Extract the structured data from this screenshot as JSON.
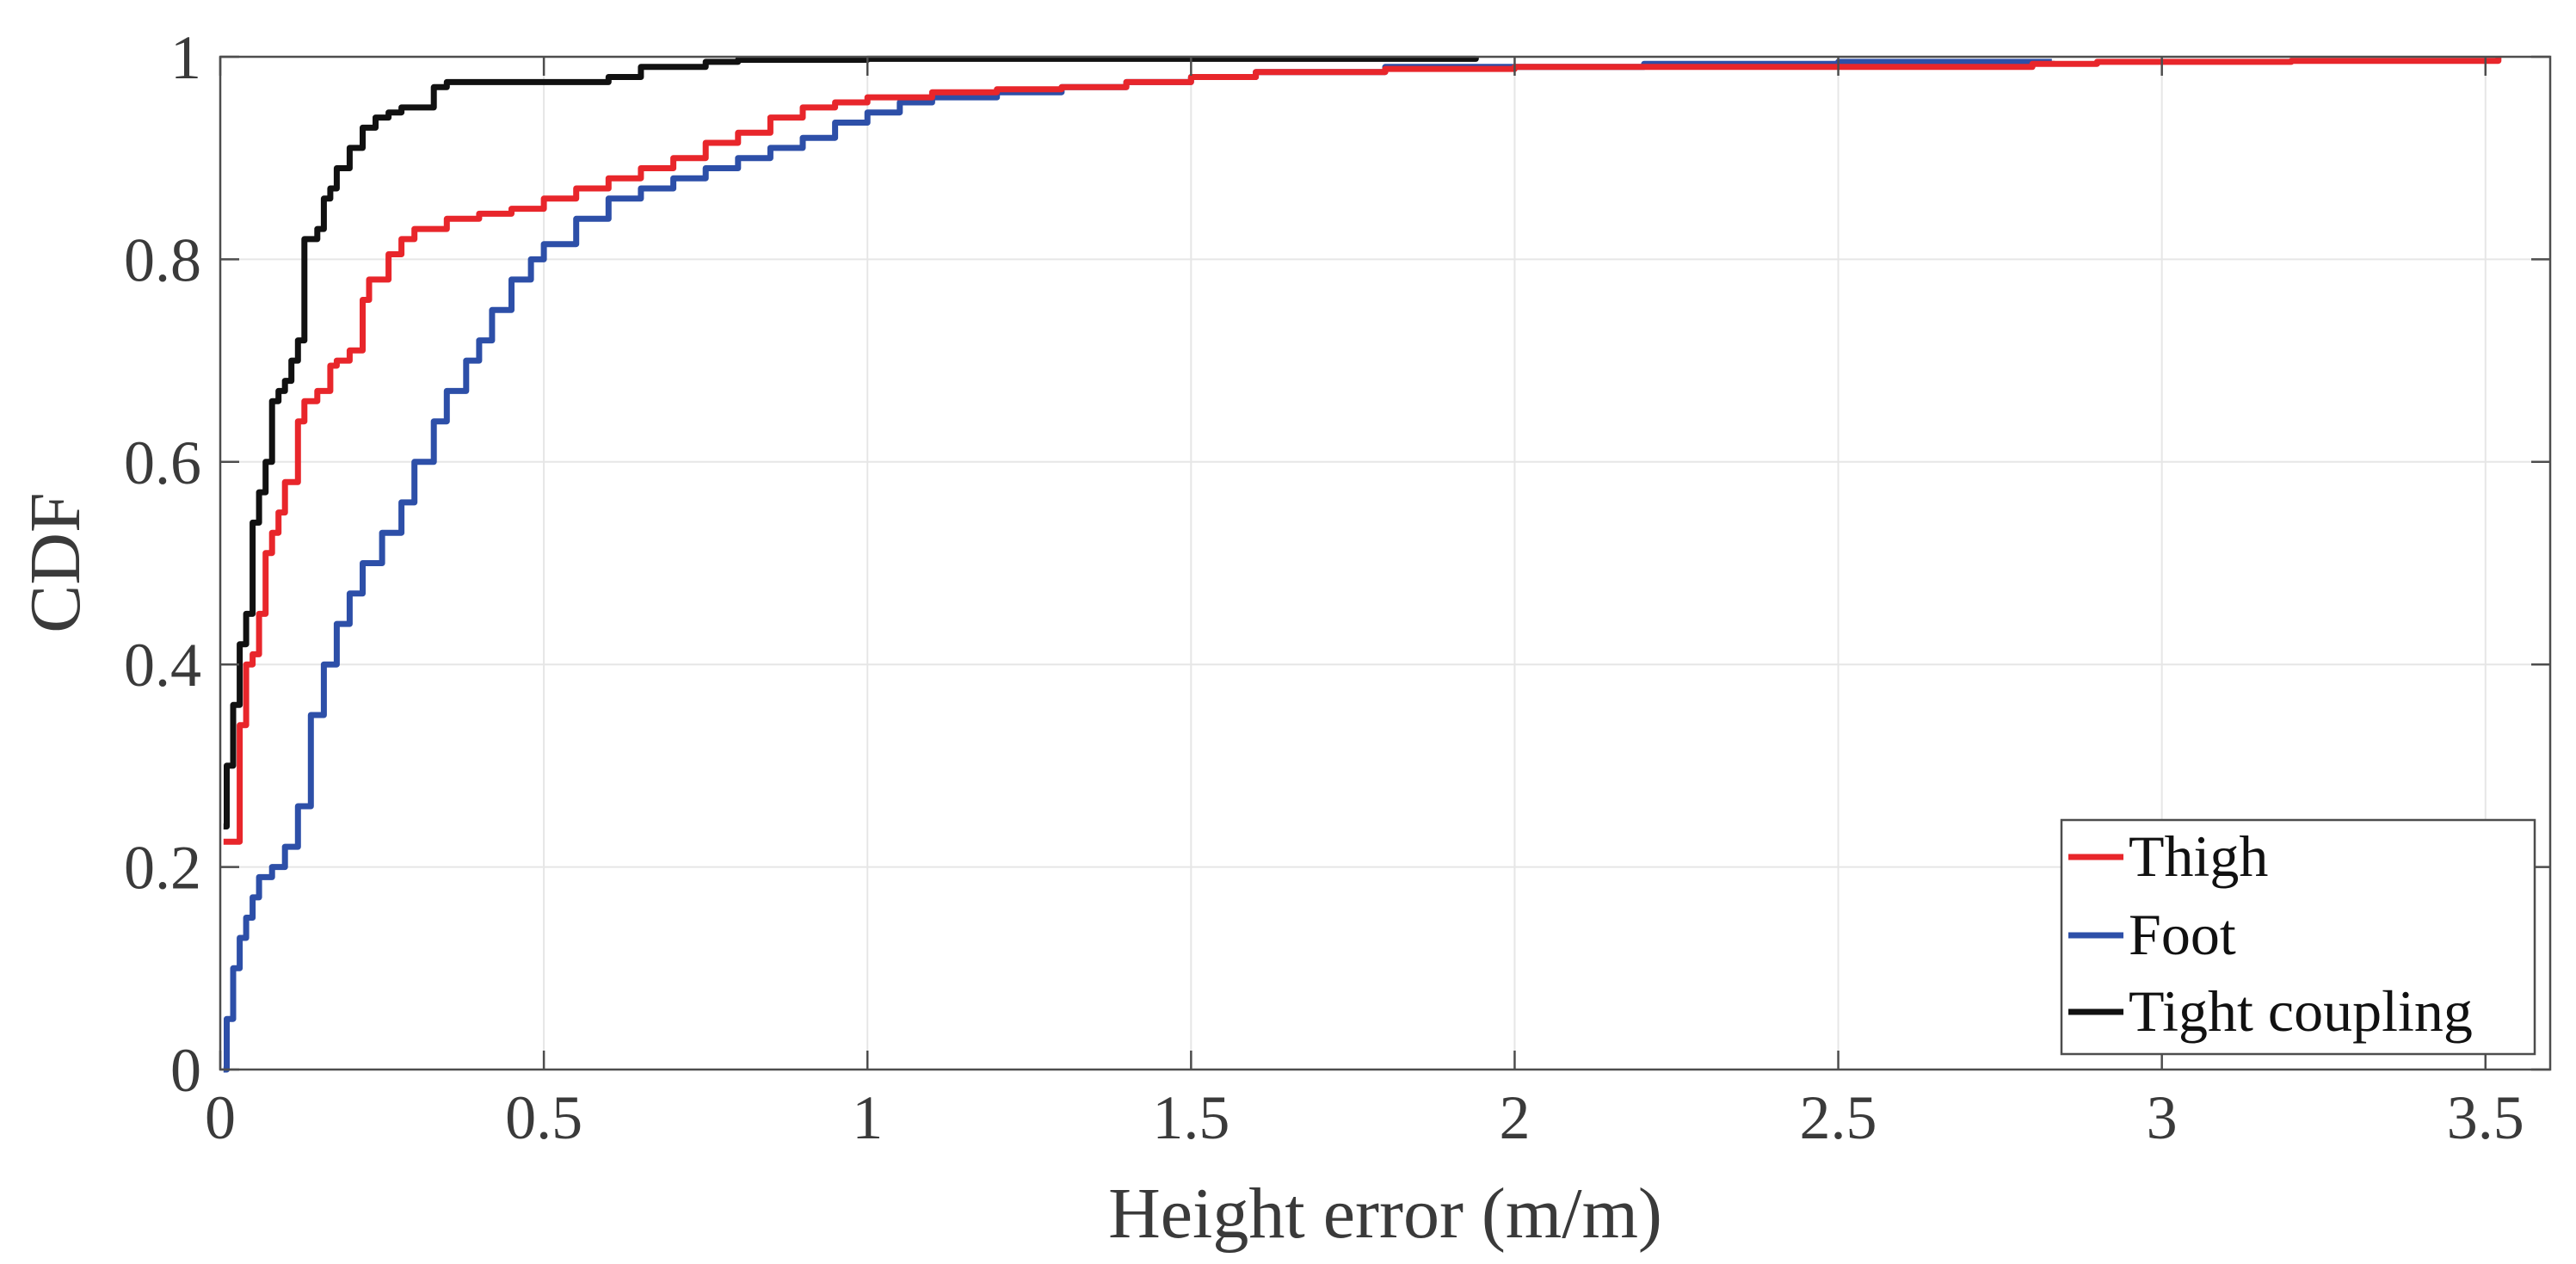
{
  "chart_data": {
    "type": "line",
    "title": "",
    "xlabel": "Height error (m/m)",
    "ylabel": "CDF",
    "xlim": [
      0,
      3.6
    ],
    "ylim": [
      0,
      1
    ],
    "x_ticks": [
      0,
      0.5,
      1,
      1.5,
      2,
      2.5,
      3,
      3.5
    ],
    "x_tick_labels": [
      "0",
      "0.5",
      "1",
      "1.5",
      "2",
      "2.5",
      "3",
      "3.5"
    ],
    "y_ticks": [
      0,
      0.2,
      0.4,
      0.6,
      0.8,
      1
    ],
    "y_tick_labels": [
      "0",
      "0.2",
      "0.4",
      "0.6",
      "0.8",
      "1"
    ],
    "grid": true,
    "legend_position": "bottom-right",
    "series": [
      {
        "name": "Thigh",
        "color": "#e8262b",
        "x": [
          0.005,
          0.02,
          0.03,
          0.04,
          0.05,
          0.06,
          0.07,
          0.08,
          0.09,
          0.1,
          0.12,
          0.13,
          0.15,
          0.17,
          0.18,
          0.2,
          0.22,
          0.23,
          0.24,
          0.26,
          0.28,
          0.3,
          0.35,
          0.4,
          0.45,
          0.5,
          0.55,
          0.6,
          0.65,
          0.7,
          0.75,
          0.8,
          0.85,
          0.9,
          0.95,
          1.0,
          1.1,
          1.2,
          1.3,
          1.4,
          1.5,
          1.6,
          1.8,
          2.0,
          2.2,
          2.5,
          2.8,
          2.9,
          3.2,
          3.52
        ],
        "y": [
          0.225,
          0.225,
          0.34,
          0.4,
          0.41,
          0.45,
          0.51,
          0.53,
          0.55,
          0.58,
          0.64,
          0.66,
          0.67,
          0.695,
          0.7,
          0.71,
          0.76,
          0.78,
          0.78,
          0.805,
          0.82,
          0.83,
          0.84,
          0.845,
          0.85,
          0.86,
          0.87,
          0.88,
          0.89,
          0.9,
          0.915,
          0.925,
          0.94,
          0.95,
          0.955,
          0.96,
          0.965,
          0.968,
          0.97,
          0.975,
          0.98,
          0.985,
          0.988,
          0.99,
          0.99,
          0.99,
          0.993,
          0.995,
          0.996,
          1.0
        ]
      },
      {
        "name": "Foot",
        "color": "#2d4fa8",
        "x": [
          0.005,
          0.01,
          0.02,
          0.03,
          0.04,
          0.05,
          0.06,
          0.07,
          0.08,
          0.1,
          0.12,
          0.14,
          0.16,
          0.18,
          0.2,
          0.22,
          0.25,
          0.28,
          0.3,
          0.33,
          0.35,
          0.38,
          0.4,
          0.42,
          0.45,
          0.48,
          0.5,
          0.55,
          0.6,
          0.65,
          0.7,
          0.75,
          0.8,
          0.85,
          0.9,
          0.95,
          1.0,
          1.05,
          1.1,
          1.2,
          1.3,
          1.4,
          1.5,
          1.6,
          1.8,
          2.0,
          2.2,
          2.5,
          2.83
        ],
        "y": [
          0.0,
          0.05,
          0.1,
          0.13,
          0.15,
          0.17,
          0.19,
          0.19,
          0.2,
          0.22,
          0.26,
          0.35,
          0.4,
          0.44,
          0.47,
          0.5,
          0.53,
          0.56,
          0.6,
          0.64,
          0.67,
          0.7,
          0.72,
          0.75,
          0.78,
          0.8,
          0.815,
          0.84,
          0.86,
          0.87,
          0.88,
          0.89,
          0.9,
          0.91,
          0.92,
          0.935,
          0.945,
          0.955,
          0.96,
          0.965,
          0.97,
          0.975,
          0.98,
          0.985,
          0.99,
          0.99,
          0.993,
          0.995,
          0.996
        ]
      },
      {
        "name": "Tight coupling",
        "color": "#111111",
        "x": [
          0.005,
          0.01,
          0.02,
          0.03,
          0.04,
          0.05,
          0.06,
          0.07,
          0.08,
          0.09,
          0.1,
          0.11,
          0.12,
          0.13,
          0.14,
          0.15,
          0.16,
          0.17,
          0.18,
          0.2,
          0.22,
          0.24,
          0.26,
          0.28,
          0.3,
          0.33,
          0.35,
          0.4,
          0.5,
          0.6,
          0.65,
          0.7,
          0.75,
          0.8,
          1.0,
          1.2,
          1.5,
          1.94
        ],
        "y": [
          0.24,
          0.3,
          0.36,
          0.42,
          0.45,
          0.54,
          0.57,
          0.6,
          0.66,
          0.67,
          0.68,
          0.7,
          0.72,
          0.82,
          0.82,
          0.83,
          0.86,
          0.87,
          0.89,
          0.91,
          0.93,
          0.94,
          0.945,
          0.95,
          0.95,
          0.97,
          0.975,
          0.975,
          0.975,
          0.98,
          0.99,
          0.99,
          0.995,
          0.997,
          0.998,
          0.998,
          0.998,
          1.0
        ]
      }
    ]
  }
}
